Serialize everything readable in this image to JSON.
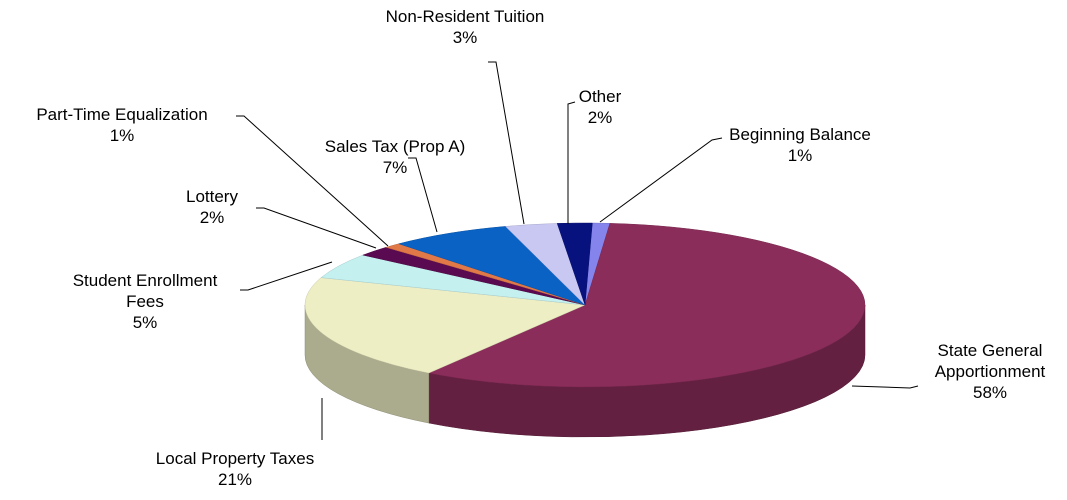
{
  "chart_data": {
    "type": "pie",
    "categories": [
      "Beginning Balance",
      "State General Apportionment",
      "Local Property Taxes",
      "Student Enrollment Fees",
      "Lottery",
      "Part-Time Equalization",
      "Sales Tax (Prop A)",
      "Non-Resident Tuition",
      "Other"
    ],
    "values": [
      1,
      58,
      21,
      5,
      2,
      1,
      7,
      3,
      2
    ],
    "value_labels": [
      "1%",
      "58%",
      "21%",
      "5%",
      "2%",
      "1%",
      "7%",
      "3%",
      "2%"
    ],
    "colors": [
      "#8484ec",
      "#8b2d5a",
      "#eeeec4",
      "#c4f0f0",
      "#5a0a50",
      "#e07848",
      "#0a62c4",
      "#c8c8f2",
      "#08127e"
    ]
  }
}
